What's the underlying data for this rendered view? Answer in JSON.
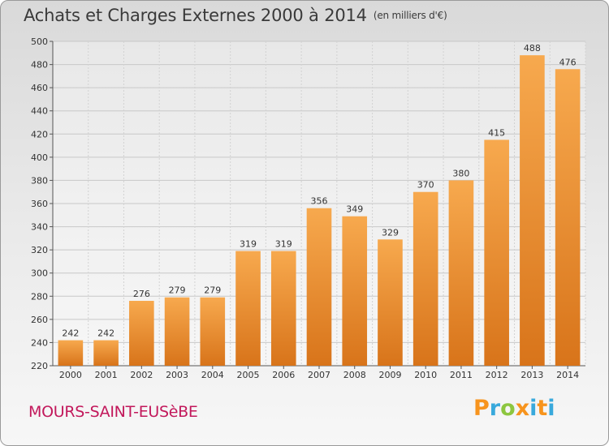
{
  "title": "Achats et Charges Externes 2000 à 2014",
  "subtitle": "(en milliers d'€)",
  "commune": "MOURS-SAINT-EUSèBE",
  "logo": {
    "letters": [
      "P",
      "r",
      "o",
      "x",
      "i",
      "t",
      "i"
    ],
    "colors": [
      "#f7941d",
      "#39a9dc",
      "#8dc63f",
      "#f7941d",
      "#39a9dc",
      "#f7941d",
      "#39a9dc"
    ]
  },
  "colors": {
    "bar_top": "#f7a94e",
    "bar_bottom": "#d8741a",
    "commune": "#c2185b"
  },
  "chart_data": {
    "type": "bar",
    "categories": [
      "2000",
      "2001",
      "2002",
      "2003",
      "2004",
      "2005",
      "2006",
      "2007",
      "2008",
      "2009",
      "2010",
      "2011",
      "2012",
      "2013",
      "2014"
    ],
    "values": [
      242,
      242,
      276,
      279,
      279,
      319,
      319,
      356,
      349,
      329,
      370,
      380,
      415,
      488,
      476
    ],
    "title": "Achats et Charges Externes 2000 à 2014",
    "subtitle": "(en milliers d'€)",
    "ylim": [
      220,
      500
    ],
    "yticks": [
      220,
      240,
      260,
      280,
      300,
      320,
      340,
      360,
      380,
      400,
      420,
      440,
      460,
      480,
      500
    ],
    "grid": true,
    "data_labels": true
  }
}
